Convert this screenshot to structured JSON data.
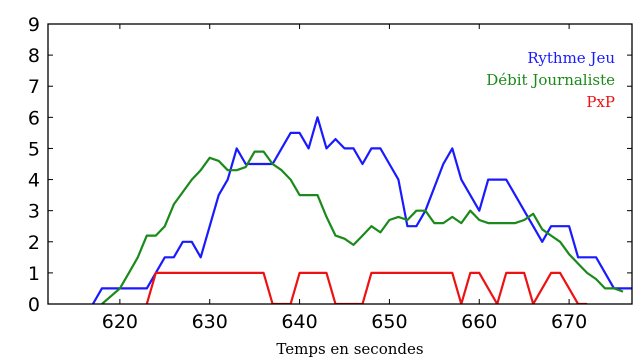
{
  "chart_data": {
    "type": "line",
    "xlabel": "Temps en secondes",
    "ylabel": "",
    "xlim": [
      612,
      677
    ],
    "ylim": [
      0,
      9
    ],
    "xticks": [
      "620",
      "630",
      "640",
      "650",
      "660",
      "670"
    ],
    "yticks": [
      "0",
      "1",
      "2",
      "3",
      "4",
      "5",
      "6",
      "7",
      "8",
      "9"
    ],
    "legend_position": "top-right",
    "grid": false,
    "series": [
      {
        "name": "Rythme Jeu",
        "color": "#1a1aff",
        "x": [
          617,
          618,
          623,
          625,
          626,
          627,
          628,
          629,
          631,
          632,
          633,
          634,
          635,
          637,
          638,
          639,
          640,
          641,
          642,
          643,
          644,
          645,
          646,
          647,
          648,
          649,
          650,
          651,
          652,
          653,
          654,
          656,
          657,
          658,
          660,
          661,
          663,
          664,
          665,
          666,
          667,
          668,
          670,
          671,
          673,
          675,
          677
        ],
        "y": [
          0,
          0.5,
          0.5,
          1.5,
          1.5,
          2,
          2,
          1.5,
          3.5,
          4,
          5,
          4.5,
          4.5,
          4.5,
          5,
          5.5,
          5.5,
          5,
          6,
          5,
          5.3,
          5,
          5,
          4.5,
          5,
          5,
          4.5,
          4,
          2.5,
          2.5,
          3,
          4.5,
          5,
          4,
          3,
          4,
          4,
          3.5,
          3,
          2.5,
          2,
          2.5,
          2.5,
          1.5,
          1.5,
          0.5,
          0.5
        ]
      },
      {
        "name": "Débit Journaliste",
        "color": "#1a8a1a",
        "x": [
          618,
          620,
          621,
          622,
          623,
          624,
          625,
          626,
          627,
          628,
          629,
          630,
          631,
          632,
          633,
          634,
          635,
          636,
          637,
          638,
          639,
          640,
          641,
          642,
          643,
          644,
          645,
          646,
          647,
          648,
          649,
          650,
          651,
          652,
          653,
          654,
          655,
          656,
          657,
          658,
          659,
          660,
          661,
          662,
          663,
          664,
          665,
          666,
          667,
          668,
          669,
          670,
          671,
          672,
          673,
          674,
          675,
          676
        ],
        "y": [
          0,
          0.5,
          1.0,
          1.5,
          2.2,
          2.2,
          2.5,
          3.2,
          3.6,
          4.0,
          4.3,
          4.7,
          4.6,
          4.3,
          4.3,
          4.4,
          4.9,
          4.9,
          4.5,
          4.3,
          4.0,
          3.5,
          3.5,
          3.5,
          2.8,
          2.2,
          2.1,
          1.9,
          2.2,
          2.5,
          2.3,
          2.7,
          2.8,
          2.7,
          3.0,
          3.0,
          2.6,
          2.6,
          2.8,
          2.6,
          3.0,
          2.7,
          2.6,
          2.6,
          2.6,
          2.6,
          2.7,
          2.9,
          2.4,
          2.2,
          2.0,
          1.6,
          1.3,
          1.0,
          0.8,
          0.5,
          0.5,
          0.4
        ]
      },
      {
        "name": "PxP",
        "color": "#ee1111",
        "x": [
          623,
          624,
          636,
          637,
          639,
          640,
          643,
          644,
          647,
          648,
          657,
          658,
          659,
          660,
          662,
          663,
          665,
          666,
          668,
          669,
          671,
          672
        ],
        "y": [
          0,
          1,
          1,
          0,
          0,
          1,
          1,
          0,
          0,
          1,
          1,
          0,
          1,
          1,
          0,
          1,
          1,
          0,
          1,
          1,
          0,
          0
        ]
      }
    ]
  }
}
